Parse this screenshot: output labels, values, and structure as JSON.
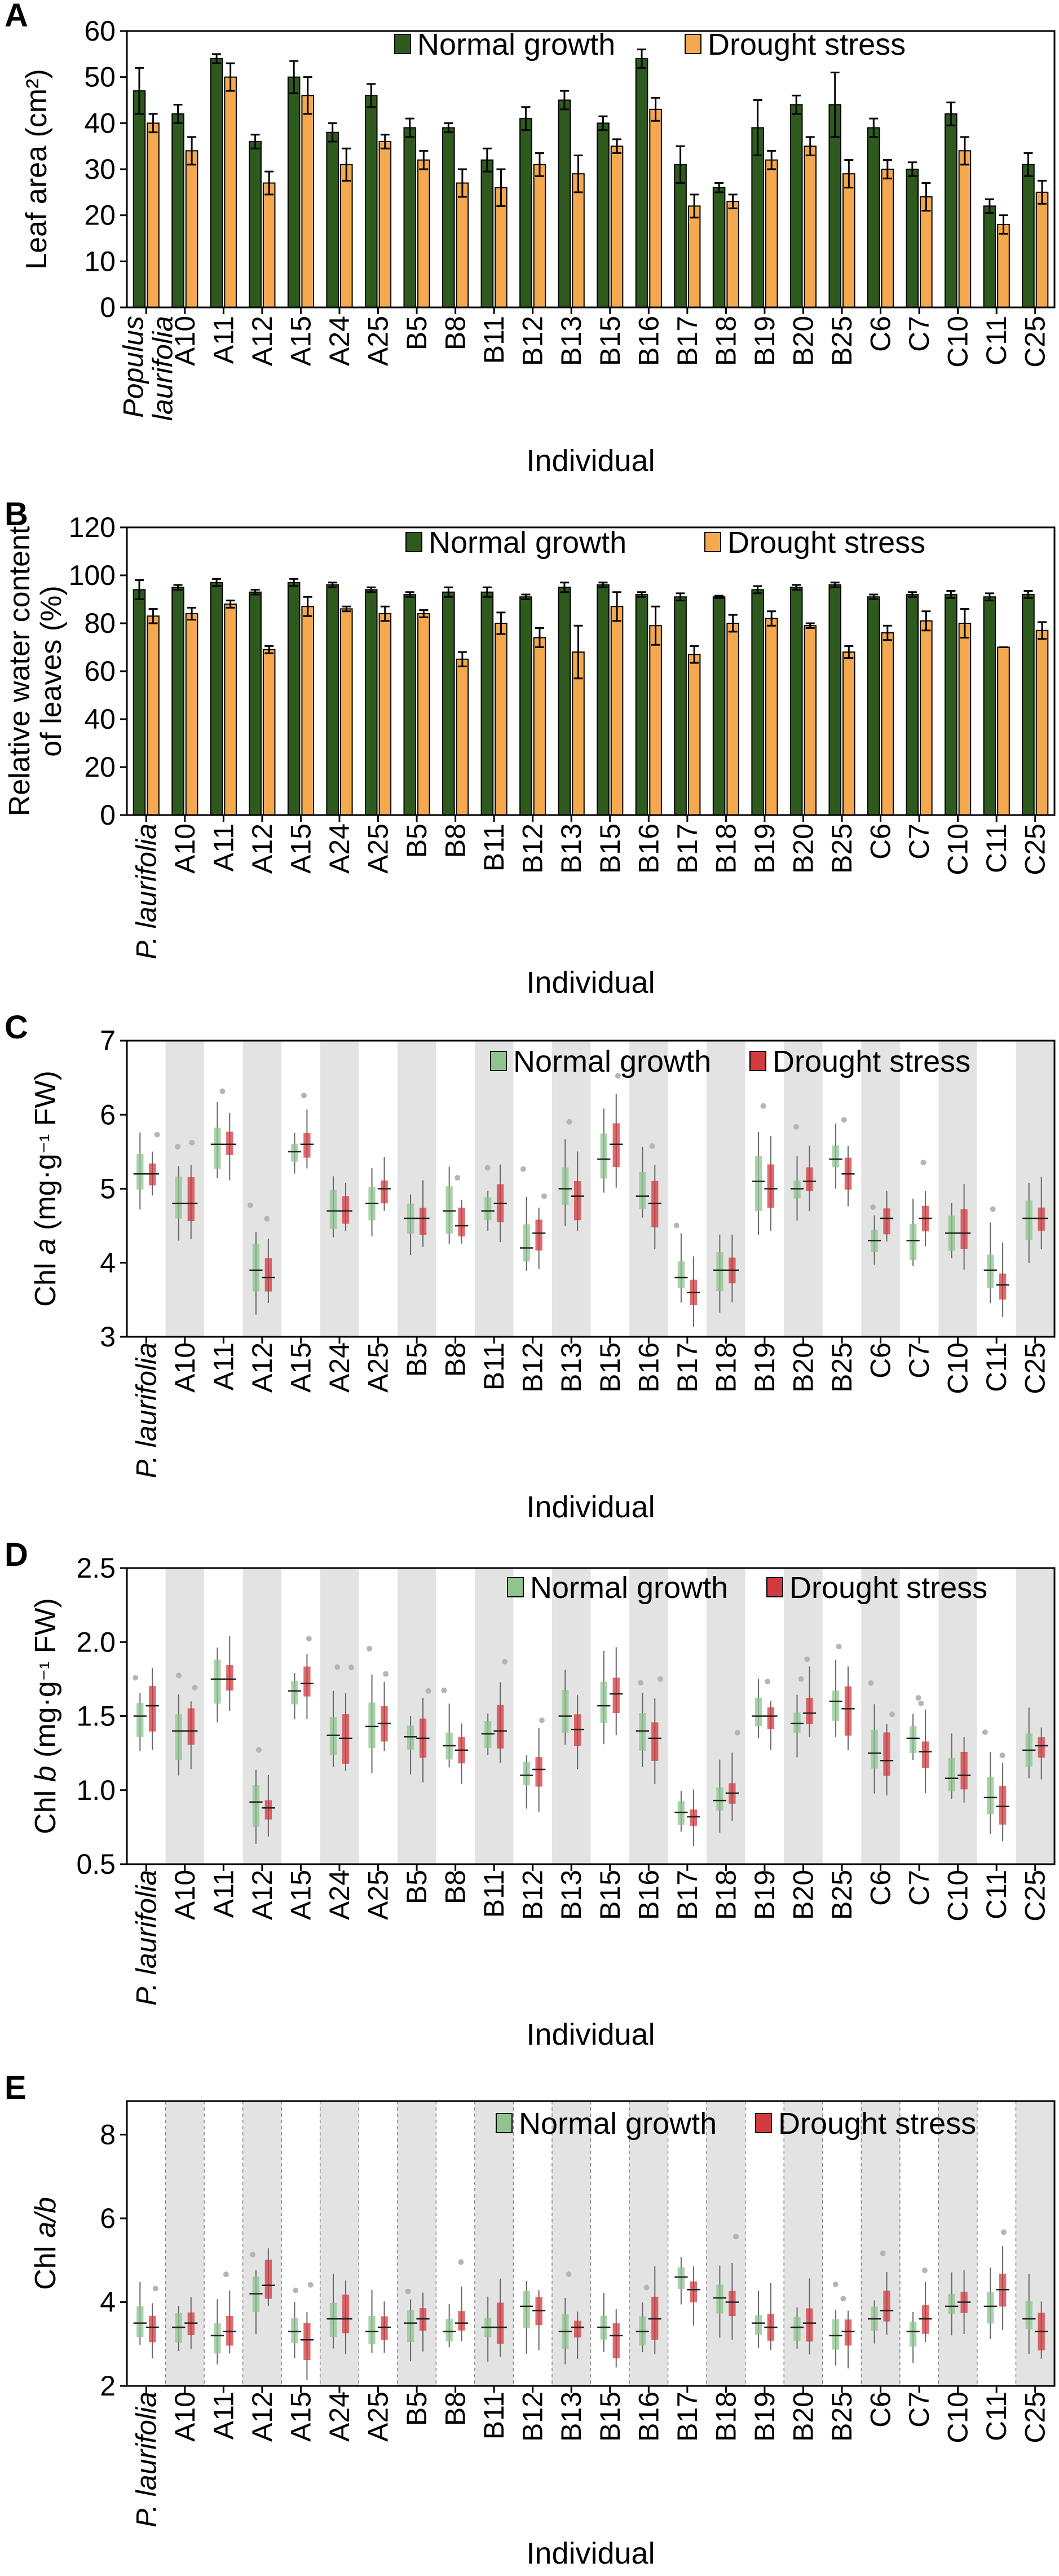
{
  "chart_data": [
    {
      "panel": "A",
      "type": "bar",
      "categories": [
        "Populus laurifolia",
        "A10",
        "A11",
        "A12",
        "A15",
        "A24",
        "A25",
        "B5",
        "B8",
        "B11",
        "B12",
        "B13",
        "B15",
        "B16",
        "B17",
        "B18",
        "B19",
        "B20",
        "B25",
        "C6",
        "C7",
        "C10",
        "C11",
        "C25"
      ],
      "xlabel": "Individual",
      "ylabel": "Leaf area (cm²)",
      "ylim": [
        0,
        60
      ],
      "yticks": [
        0,
        10,
        20,
        30,
        40,
        50,
        60
      ],
      "legend": "top",
      "series": [
        {
          "name": "Normal growth",
          "color": "#2f5a1e",
          "values": [
            47,
            42,
            54,
            36,
            50,
            38,
            46,
            39,
            39,
            32,
            41,
            45,
            40,
            54,
            31,
            26,
            39,
            44,
            44,
            39,
            30,
            42,
            22,
            31
          ],
          "err": [
            5,
            2,
            1,
            1.5,
            3.5,
            2,
            2.5,
            2,
            1,
            2.5,
            2.5,
            2,
            1.5,
            2,
            4,
            1,
            6,
            2,
            7,
            2,
            1.5,
            2.5,
            1.5,
            2.5
          ]
        },
        {
          "name": "Drought stress",
          "color": "#f4a94f",
          "values": [
            40,
            34,
            50,
            27,
            46,
            31,
            36,
            32,
            27,
            26,
            31,
            29,
            35,
            43,
            22,
            23,
            32,
            35,
            29,
            30,
            24,
            34,
            18,
            25
          ],
          "err": [
            2,
            3,
            3,
            2.5,
            4,
            3.5,
            1.5,
            2,
            3,
            4,
            2.5,
            4,
            1.5,
            2.5,
            2.5,
            1.5,
            2,
            2,
            3,
            2,
            3,
            3,
            2,
            2.5
          ]
        }
      ]
    },
    {
      "panel": "B",
      "type": "bar",
      "categories": [
        "P. laurifolia",
        "A10",
        "A11",
        "A12",
        "A15",
        "A24",
        "A25",
        "B5",
        "B8",
        "B11",
        "B12",
        "B13",
        "B15",
        "B16",
        "B17",
        "B18",
        "B19",
        "B20",
        "B25",
        "C6",
        "C7",
        "C10",
        "C11",
        "C25"
      ],
      "xlabel": "Individual",
      "ylabel": "Relative water content of leaves (%)",
      "ylabel_lines": [
        "Relative water content",
        "of leaves (%)"
      ],
      "ylim": [
        0,
        120
      ],
      "yticks": [
        0,
        20,
        40,
        60,
        80,
        100,
        120
      ],
      "legend": "top",
      "series": [
        {
          "name": "Normal growth",
          "color": "#2f5a1e",
          "values": [
            94,
            95,
            97,
            93,
            97,
            96,
            94,
            92,
            93,
            93,
            91,
            95,
            96,
            92,
            91,
            91,
            94,
            95,
            96,
            91,
            92,
            92,
            91,
            92
          ],
          "err": [
            4,
            1,
            1.5,
            1,
            1.5,
            1,
            1,
            1,
            2,
            2,
            1,
            2,
            1,
            1,
            1.5,
            0.5,
            1.5,
            1,
            1,
            1,
            1,
            1.5,
            1.5,
            1.5
          ]
        },
        {
          "name": "Drought stress",
          "color": "#f4a94f",
          "values": [
            83,
            84,
            88,
            69,
            87,
            86,
            84,
            84,
            65,
            80,
            74,
            68,
            87,
            79,
            67,
            80,
            82,
            79,
            68,
            76,
            81,
            80,
            70,
            77
          ],
          "err": [
            3,
            2.5,
            1.5,
            1.5,
            4,
            1,
            3,
            1.5,
            3,
            4.5,
            4,
            11,
            6,
            8,
            3.5,
            3.5,
            3,
            1,
            2.5,
            3,
            4,
            6,
            0,
            3.5
          ]
        }
      ]
    },
    {
      "panel": "C",
      "type": "box",
      "categories": [
        "P. laurifolia",
        "A10",
        "A11",
        "A12",
        "A15",
        "A24",
        "A25",
        "B5",
        "B8",
        "B11",
        "B12",
        "B13",
        "B15",
        "B16",
        "B17",
        "B18",
        "B19",
        "B20",
        "B25",
        "C6",
        "C7",
        "C10",
        "C11",
        "C25"
      ],
      "xlabel": "Individual",
      "ylabel": "Chl a (mg·g⁻¹ FW)",
      "ylabel_parts": [
        "Chl ",
        "a",
        " (mg·g",
        "⁻¹",
        " FW)"
      ],
      "ylim": [
        3,
        7
      ],
      "yticks": [
        3,
        4,
        5,
        6,
        7
      ],
      "legend": "top-right",
      "series": [
        {
          "name": "Normal growth",
          "color": "#8fc48f",
          "median": [
            5.2,
            4.8,
            5.6,
            3.9,
            5.5,
            4.7,
            4.8,
            4.6,
            4.7,
            4.7,
            4.2,
            5.0,
            5.4,
            4.9,
            3.8,
            3.9,
            5.1,
            5.0,
            5.4,
            4.3,
            4.3,
            4.4,
            3.9,
            4.6
          ]
        },
        {
          "name": "Drought stress",
          "color": "#d13a3f",
          "median": [
            5.2,
            4.8,
            5.6,
            3.8,
            5.6,
            4.7,
            5.0,
            4.6,
            4.5,
            4.8,
            4.4,
            4.9,
            5.6,
            4.8,
            3.6,
            3.9,
            5.0,
            5.1,
            5.2,
            4.6,
            4.6,
            4.4,
            3.7,
            4.6
          ]
        }
      ]
    },
    {
      "panel": "D",
      "type": "box",
      "categories": [
        "P. laurifolia",
        "A10",
        "A11",
        "A12",
        "A15",
        "A24",
        "A25",
        "B5",
        "B8",
        "B11",
        "B12",
        "B13",
        "B15",
        "B16",
        "B17",
        "B18",
        "B19",
        "B20",
        "B25",
        "C6",
        "C7",
        "C10",
        "C11",
        "C25"
      ],
      "xlabel": "Individual",
      "ylabel": "Chl b (mg·g⁻¹ FW)",
      "ylabel_parts": [
        "Chl ",
        "b",
        " (mg·g",
        "⁻¹",
        " FW)"
      ],
      "ylim": [
        0.5,
        2.5
      ],
      "yticks": [
        0.5,
        1.0,
        1.5,
        2.0,
        2.5
      ],
      "legend": "top-right",
      "series": [
        {
          "name": "Normal growth",
          "color": "#8fc48f",
          "median": [
            1.5,
            1.4,
            1.75,
            0.92,
            1.67,
            1.37,
            1.43,
            1.36,
            1.3,
            1.38,
            1.1,
            1.5,
            1.57,
            1.4,
            0.85,
            0.93,
            1.5,
            1.45,
            1.6,
            1.25,
            1.35,
            1.08,
            0.95,
            1.27
          ]
        },
        {
          "name": "Drought stress",
          "color": "#d13a3f",
          "median": [
            1.57,
            1.4,
            1.75,
            0.88,
            1.72,
            1.35,
            1.45,
            1.35,
            1.27,
            1.4,
            1.14,
            1.41,
            1.65,
            1.35,
            0.82,
            0.98,
            1.5,
            1.52,
            1.55,
            1.2,
            1.26,
            1.1,
            0.89,
            1.3
          ]
        }
      ]
    },
    {
      "panel": "E",
      "type": "box",
      "categories": [
        "P. laurifolia",
        "A10",
        "A11",
        "A12",
        "A15",
        "A24",
        "A25",
        "B5",
        "B8",
        "B11",
        "B12",
        "B13",
        "B15",
        "B16",
        "B17",
        "B18",
        "B19",
        "B20",
        "B25",
        "C6",
        "C7",
        "C10",
        "C11",
        "C25"
      ],
      "xlabel": "Individual",
      "ylabel": "Chl a/b",
      "ylabel_parts": [
        "Chl ",
        "a/b"
      ],
      "ylim": [
        2,
        8.8
      ],
      "yticks": [
        2,
        4,
        6,
        8
      ],
      "legend": "top-right",
      "series": [
        {
          "name": "Normal growth",
          "color": "#8fc48f",
          "median": [
            3.5,
            3.4,
            3.2,
            4.2,
            3.3,
            3.6,
            3.3,
            3.5,
            3.3,
            3.4,
            3.9,
            3.3,
            3.4,
            3.3,
            4.6,
            4.1,
            3.5,
            3.4,
            3.2,
            3.6,
            3.3,
            3.9,
            3.9,
            3.6
          ]
        },
        {
          "name": "Drought stress",
          "color": "#d13a3f",
          "median": [
            3.4,
            3.5,
            3.3,
            4.4,
            3.1,
            3.6,
            3.4,
            3.6,
            3.5,
            3.4,
            3.8,
            3.4,
            3.2,
            3.6,
            4.3,
            4.0,
            3.4,
            3.5,
            3.3,
            3.8,
            3.6,
            4.0,
            4.3,
            3.3
          ]
        }
      ]
    }
  ]
}
